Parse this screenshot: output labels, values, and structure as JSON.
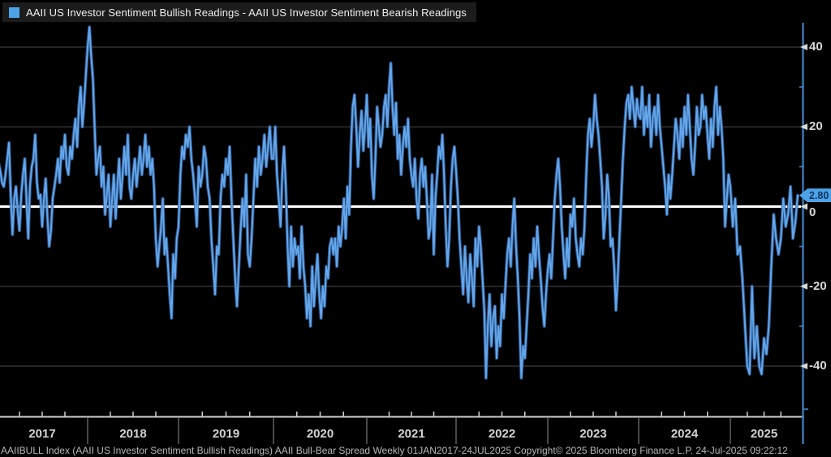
{
  "legend": {
    "series_label": "AAII US Investor Sentiment Bullish Readings - AAII US Investor Sentiment Bearish Readings"
  },
  "value_tag": {
    "text": "2.80"
  },
  "footer": {
    "text": "AAIIBULL Index (AAII US Investor Sentiment Bullish Readings) AAII Bull-Bear Spread  Weekly 01JAN2017-24JUL2025  Copyright© 2025 Bloomberg Finance L.P.  24-Jul-2025 09:22:12"
  },
  "colors": {
    "background": "#000000",
    "legend_bar_bg": "#1c1c1c",
    "series_line": "#64a6ec",
    "series_line_halo": "#30619c",
    "legend_marker": "#4da3e8",
    "value_tag_bg": "#4da3e8",
    "value_tag_text": "#10335e",
    "zero_line": "#ffffff",
    "gridline": "#4b4b4b",
    "x_axis_line": "#cfcfcf",
    "y_axis_line": "#3a76b0",
    "tick_label": "#d9d9d9",
    "year_separator": "#8f8f8f"
  },
  "chart_data": {
    "type": "line",
    "title": "AAII US Investor Sentiment Bullish Readings - AAII US Investor Sentiment Bearish Readings",
    "ylabel": "Bull-Bear Spread",
    "frequency": "weekly",
    "x_start": "01JAN2017",
    "x_end": "24JUL2025",
    "last_value": 2.8,
    "ylim": [
      -48,
      46
    ],
    "y_ticks": [
      40,
      20,
      0,
      -20,
      -40
    ],
    "y_minor_ticks": [
      30,
      10,
      -10,
      -30
    ],
    "x_tick_labels": [
      "2017",
      "2018",
      "2019",
      "2020",
      "2021",
      "2022",
      "2023",
      "2024",
      "2025"
    ],
    "legend_position": "top-left",
    "grid": true,
    "zero_line": true,
    "year_start_indices": [
      0,
      52,
      104,
      156,
      209,
      261,
      313,
      365,
      417
    ],
    "values": [
      7,
      11,
      9,
      6,
      5,
      8,
      12,
      16,
      3,
      -7,
      2,
      5,
      -1,
      -6,
      3,
      8,
      12,
      2,
      -8,
      5,
      10,
      12,
      18,
      6,
      2,
      3,
      -5,
      2,
      7,
      -3,
      -10,
      -6,
      2,
      5,
      8,
      12,
      6,
      15,
      12,
      18,
      10,
      8,
      15,
      12,
      18,
      22,
      15,
      25,
      30,
      20,
      26,
      33,
      40,
      45,
      38,
      32,
      20,
      8,
      12,
      15,
      5,
      10,
      -2,
      3,
      8,
      -5,
      2,
      8,
      -3,
      5,
      12,
      2,
      8,
      15,
      8,
      18,
      5,
      2,
      8,
      12,
      5,
      10,
      15,
      8,
      12,
      18,
      10,
      15,
      8,
      12,
      5,
      -8,
      -15,
      -10,
      -5,
      2,
      -12,
      -8,
      -15,
      -22,
      -28,
      -12,
      -18,
      -8,
      -5,
      8,
      15,
      12,
      18,
      15,
      20,
      12,
      8,
      2,
      -5,
      10,
      5,
      8,
      15,
      12,
      5,
      2,
      -8,
      -15,
      -22,
      -10,
      -12,
      2,
      8,
      5,
      12,
      8,
      15,
      2,
      -8,
      -18,
      -25,
      -15,
      -6,
      2,
      -5,
      8,
      -12,
      -15,
      -8,
      2,
      12,
      5,
      15,
      8,
      12,
      18,
      10,
      15,
      20,
      12,
      12,
      20,
      8,
      2,
      -5,
      8,
      15,
      5,
      -10,
      -20,
      -5,
      -15,
      -8,
      -12,
      -10,
      -18,
      -5,
      -15,
      -20,
      -28,
      -22,
      -30,
      -15,
      -25,
      -18,
      -12,
      -22,
      -28,
      -20,
      -25,
      -15,
      -18,
      -10,
      -8,
      -12,
      -8,
      -15,
      -5,
      -10,
      -5,
      2,
      -8,
      5,
      -2,
      15,
      25,
      28,
      20,
      10,
      18,
      24,
      14,
      20,
      28,
      15,
      22,
      8,
      2,
      12,
      25,
      20,
      15,
      18,
      25,
      28,
      20,
      30,
      36,
      25,
      18,
      26,
      12,
      18,
      8,
      15,
      20,
      15,
      22,
      12,
      8,
      5,
      12,
      2,
      -3,
      8,
      12,
      5,
      10,
      2,
      -8,
      -5,
      8,
      -12,
      2,
      8,
      15,
      12,
      18,
      8,
      -5,
      -15,
      -8,
      5,
      12,
      15,
      9,
      2,
      -8,
      -15,
      -22,
      -10,
      -18,
      -24,
      -12,
      -18,
      -25,
      -8,
      -15,
      -5,
      -10,
      -18,
      -26,
      -43,
      -30,
      -22,
      -35,
      -28,
      -25,
      -38,
      -30,
      -35,
      -22,
      -28,
      -20,
      -12,
      -8,
      -15,
      -5,
      2,
      -10,
      -18,
      -28,
      -43,
      -35,
      -38,
      -30,
      -22,
      -12,
      -18,
      -8,
      -15,
      -5,
      -12,
      -18,
      -25,
      -30,
      -22,
      -16,
      -12,
      -18,
      -8,
      2,
      8,
      12,
      5,
      -5,
      -12,
      -18,
      -8,
      -15,
      -2,
      -5,
      2,
      -8,
      -12,
      -15,
      -8,
      -12,
      -5,
      8,
      18,
      22,
      15,
      20,
      28,
      22,
      18,
      12,
      5,
      -8,
      -2,
      8,
      2,
      -10,
      -8,
      -15,
      -26,
      -18,
      -8,
      2,
      12,
      20,
      26,
      28,
      22,
      30,
      25,
      20,
      27,
      23,
      22,
      30,
      18,
      25,
      20,
      28,
      15,
      22,
      25,
      18,
      28,
      20,
      15,
      10,
      5,
      -2,
      8,
      2,
      8,
      15,
      22,
      18,
      12,
      22,
      15,
      25,
      18,
      28,
      20,
      12,
      8,
      15,
      25,
      18,
      20,
      28,
      22,
      25,
      18,
      12,
      22,
      15,
      25,
      30,
      18,
      25,
      20,
      12,
      -5,
      2,
      8,
      5,
      -5,
      2,
      -12,
      -10,
      -18,
      -29,
      -40,
      -42,
      -20,
      -38,
      -30,
      -40,
      -42,
      -33,
      -37,
      -30,
      -15,
      -2,
      -8,
      -12,
      -8,
      2,
      -5,
      -2,
      5,
      -8,
      -4,
      2.8
    ]
  }
}
